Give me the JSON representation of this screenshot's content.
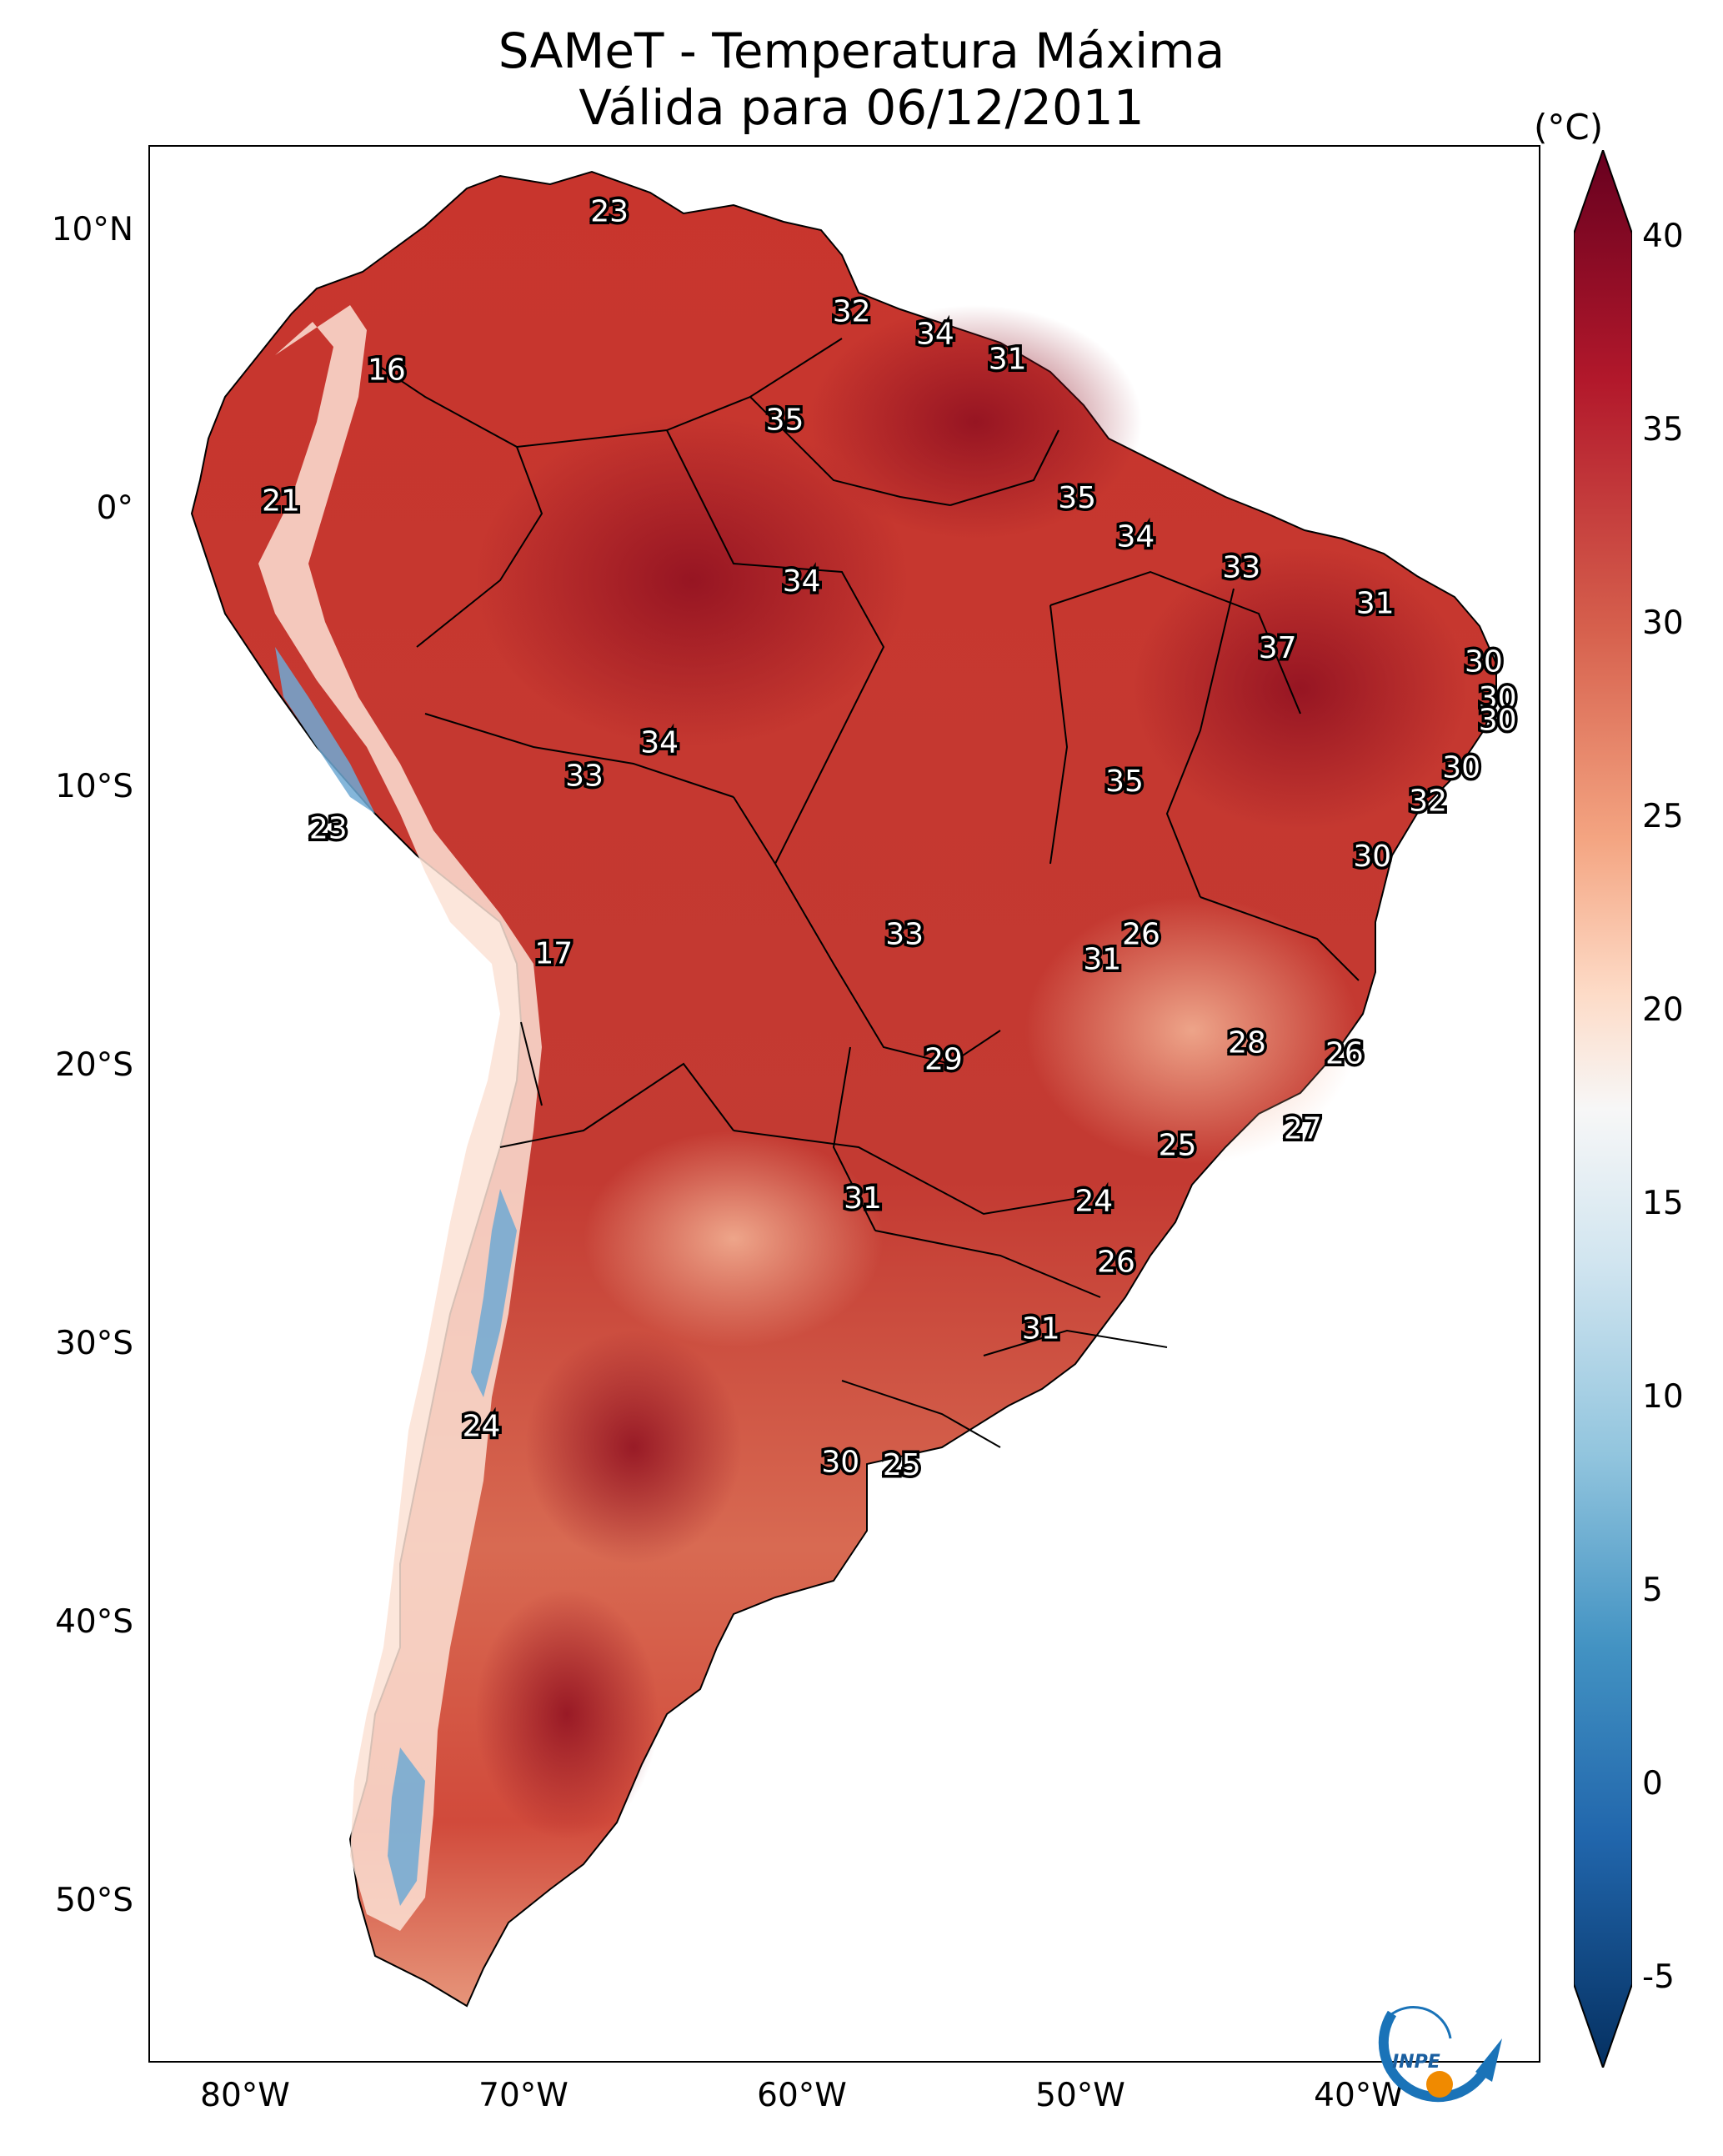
{
  "title": {
    "line1": "SAMeT - Temperatura Máxima",
    "line2": "Válida para 06/12/2011"
  },
  "axes": {
    "lat_labels": [
      "10°N",
      "0°",
      "10°S",
      "20°S",
      "30°S",
      "40°S",
      "50°S"
    ],
    "lon_labels": [
      "80°W",
      "70°W",
      "60°W",
      "50°W",
      "40°W"
    ]
  },
  "colorbar": {
    "unit": "(°C)",
    "ticks": [
      "40",
      "35",
      "30",
      "25",
      "20",
      "15",
      "10",
      "5",
      "0",
      "-5"
    ],
    "min": -7,
    "max": 42,
    "colors": {
      "max": "#67001f",
      "high": "#b2182b",
      "warm": "#d6604d",
      "mild": "#f4a582",
      "pale": "#fddbc7",
      "neutral": "#f7f7f7",
      "cool": "#d1e5f0",
      "cold": "#92c5de",
      "colder": "#4393c3",
      "coldest": "#2166ac",
      "min": "#053061"
    }
  },
  "temperature_labels": [
    {
      "value": "23",
      "lon": -66.5,
      "lat": 10.2
    },
    {
      "value": "16",
      "lon": -74.5,
      "lat": 4.5
    },
    {
      "value": "32",
      "lon": -57.8,
      "lat": 6.6
    },
    {
      "value": "34",
      "lon": -54.8,
      "lat": 5.8
    },
    {
      "value": "31",
      "lon": -52.2,
      "lat": 4.9
    },
    {
      "value": "35",
      "lon": -60.2,
      "lat": 2.7
    },
    {
      "value": "21",
      "lon": -78.3,
      "lat": -0.2
    },
    {
      "value": "35",
      "lon": -49.7,
      "lat": -0.1
    },
    {
      "value": "34",
      "lon": -47.6,
      "lat": -1.5
    },
    {
      "value": "33",
      "lon": -43.8,
      "lat": -2.6
    },
    {
      "value": "34",
      "lon": -59.6,
      "lat": -3.1
    },
    {
      "value": "31",
      "lon": -39.0,
      "lat": -3.9
    },
    {
      "value": "37",
      "lon": -42.5,
      "lat": -5.5
    },
    {
      "value": "30",
      "lon": -35.1,
      "lat": -6.0
    },
    {
      "value": "30",
      "lon": -34.6,
      "lat": -7.3
    },
    {
      "value": "30",
      "lon": -34.6,
      "lat": -8.1
    },
    {
      "value": "34",
      "lon": -64.7,
      "lat": -8.9
    },
    {
      "value": "33",
      "lon": -67.4,
      "lat": -10.1
    },
    {
      "value": "35",
      "lon": -48.0,
      "lat": -10.3
    },
    {
      "value": "30",
      "lon": -35.9,
      "lat": -9.8
    },
    {
      "value": "32",
      "lon": -37.1,
      "lat": -11.0
    },
    {
      "value": "23",
      "lon": -76.6,
      "lat": -12.0
    },
    {
      "value": "30",
      "lon": -39.1,
      "lat": -13.0
    },
    {
      "value": "26",
      "lon": -47.4,
      "lat": -15.8
    },
    {
      "value": "33",
      "lon": -55.9,
      "lat": -15.8
    },
    {
      "value": "31",
      "lon": -48.8,
      "lat": -16.7
    },
    {
      "value": "17",
      "lon": -68.5,
      "lat": -16.5
    },
    {
      "value": "28",
      "lon": -43.6,
      "lat": -19.7
    },
    {
      "value": "29",
      "lon": -54.5,
      "lat": -20.3
    },
    {
      "value": "26",
      "lon": -40.1,
      "lat": -20.1
    },
    {
      "value": "27",
      "lon": -41.6,
      "lat": -22.8
    },
    {
      "value": "25",
      "lon": -46.1,
      "lat": -23.4
    },
    {
      "value": "24",
      "lon": -49.1,
      "lat": -25.4
    },
    {
      "value": "31",
      "lon": -57.4,
      "lat": -25.3
    },
    {
      "value": "26",
      "lon": -48.3,
      "lat": -27.6
    },
    {
      "value": "31",
      "lon": -51.0,
      "lat": -30.0
    },
    {
      "value": "24",
      "lon": -71.1,
      "lat": -33.5
    },
    {
      "value": "30",
      "lon": -58.2,
      "lat": -34.8
    },
    {
      "value": "25",
      "lon": -56.0,
      "lat": -34.9
    }
  ],
  "logo": {
    "text": "INPE"
  }
}
